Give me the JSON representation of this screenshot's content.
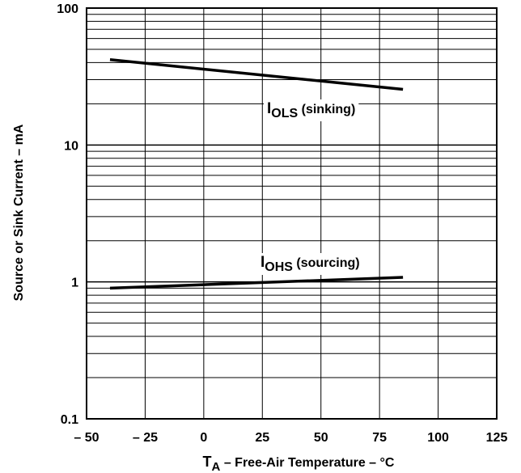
{
  "chart_data": {
    "type": "line",
    "xlabel": {
      "main": "T",
      "sub": "A",
      "rest": " – Free-Air Temperature – °C"
    },
    "ylabel": "Source or Sink Current – mA",
    "xlim": [
      -50,
      125
    ],
    "ylim": [
      0.1,
      100
    ],
    "y_scale": "log",
    "grid": true,
    "x_ticks": [
      -50,
      -25,
      0,
      25,
      50,
      75,
      100,
      125
    ],
    "x_tick_labels": [
      "– 50",
      "– 25",
      "0",
      "25",
      "50",
      "75",
      "100",
      "125"
    ],
    "y_major_ticks": [
      0.1,
      1,
      10,
      100
    ],
    "y_tick_labels": [
      "0.1",
      "1",
      "10",
      "100"
    ],
    "series": [
      {
        "name": "IOLS (sinking)",
        "label_main": "I",
        "label_sub": "OLS",
        "label_rest": " (sinking)",
        "x": [
          -40,
          85
        ],
        "y": [
          42,
          25.5
        ]
      },
      {
        "name": "IOHS (sourcing)",
        "label_main": "I",
        "label_sub": "OHS",
        "label_rest": " (sourcing)",
        "x": [
          -40,
          85
        ],
        "y": [
          0.9,
          1.08
        ]
      }
    ]
  }
}
